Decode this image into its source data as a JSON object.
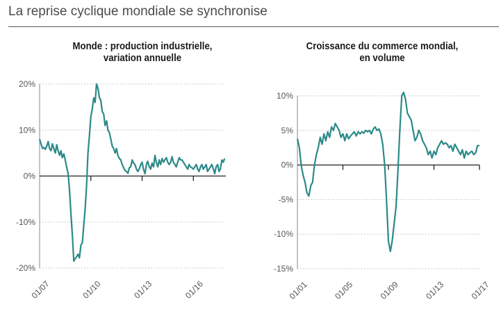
{
  "title": "La reprise cyclique mondiale se synchronise",
  "colors": {
    "line": "#2a8a88",
    "axis": "#222222",
    "grid": "#bbbbbb",
    "text": "#555555"
  },
  "chart_data": [
    {
      "type": "line",
      "title_lines": [
        "Monde : production industrielle,",
        "variation annuelle"
      ],
      "x_tick_labels": [
        "01/07",
        "01/10",
        "01/13",
        "01/16"
      ],
      "x_ticks": [
        2007.0,
        2010.0,
        2013.0,
        2016.0
      ],
      "xlim": [
        2007.0,
        2017.9
      ],
      "y_tick_labels": [
        "20%",
        "10%",
        "0%",
        "-10%",
        "-20%"
      ],
      "y_ticks": [
        20,
        10,
        0,
        -10,
        -20
      ],
      "ylim": [
        -20,
        20
      ],
      "grid": "horizontal dotted",
      "series": [
        {
          "x": [
            2007.0,
            2007.08,
            2007.17,
            2007.25,
            2007.33,
            2007.42,
            2007.5,
            2007.58,
            2007.67,
            2007.75,
            2007.83,
            2007.92,
            2008.0,
            2008.08,
            2008.17,
            2008.25,
            2008.33,
            2008.42,
            2008.5,
            2008.58,
            2008.67,
            2008.75,
            2008.83,
            2008.92,
            2009.0,
            2009.08,
            2009.17,
            2009.25,
            2009.33,
            2009.42,
            2009.5,
            2009.58,
            2009.67,
            2009.75,
            2009.83,
            2009.92,
            2010.0,
            2010.08,
            2010.17,
            2010.25,
            2010.33,
            2010.42,
            2010.5,
            2010.58,
            2010.67,
            2010.75,
            2010.83,
            2010.92,
            2011.0,
            2011.08,
            2011.17,
            2011.25,
            2011.33,
            2011.42,
            2011.5,
            2011.58,
            2011.67,
            2011.75,
            2011.83,
            2011.92,
            2012.0,
            2012.08,
            2012.17,
            2012.25,
            2012.33,
            2012.42,
            2012.5,
            2012.58,
            2012.67,
            2012.75,
            2012.83,
            2012.92,
            2013.0,
            2013.08,
            2013.17,
            2013.25,
            2013.33,
            2013.42,
            2013.5,
            2013.58,
            2013.67,
            2013.75,
            2013.83,
            2013.92,
            2014.0,
            2014.08,
            2014.17,
            2014.25,
            2014.33,
            2014.42,
            2014.5,
            2014.58,
            2014.67,
            2014.75,
            2014.83,
            2014.92,
            2015.0,
            2015.08,
            2015.17,
            2015.25,
            2015.33,
            2015.42,
            2015.5,
            2015.58,
            2015.67,
            2015.75,
            2015.83,
            2015.92,
            2016.0,
            2016.08,
            2016.17,
            2016.25,
            2016.33,
            2016.42,
            2016.5,
            2016.58,
            2016.67,
            2016.75,
            2016.83,
            2016.92,
            2017.0,
            2017.08,
            2017.17,
            2017.25,
            2017.33,
            2017.42,
            2017.5,
            2017.58,
            2017.67,
            2017.75,
            2017.83
          ],
          "values": [
            8.0,
            7.0,
            6.0,
            6.2,
            5.8,
            6.5,
            7.5,
            6.0,
            5.5,
            7.0,
            6.0,
            5.0,
            6.8,
            5.5,
            4.5,
            5.5,
            4.0,
            4.8,
            3.5,
            2.0,
            0.5,
            -3.0,
            -8.0,
            -13.0,
            -18.5,
            -18.0,
            -17.5,
            -17.0,
            -17.8,
            -15.0,
            -14.5,
            -11.0,
            -7.0,
            -2.0,
            5.0,
            9.0,
            13.0,
            14.5,
            17.0,
            16.0,
            20.0,
            19.0,
            17.0,
            16.5,
            14.0,
            13.5,
            11.0,
            12.0,
            10.0,
            9.5,
            8.0,
            6.5,
            6.0,
            5.0,
            6.0,
            4.5,
            3.8,
            3.5,
            2.5,
            1.8,
            1.2,
            1.0,
            0.6,
            1.8,
            2.0,
            3.5,
            2.8,
            2.5,
            1.5,
            1.0,
            1.5,
            2.5,
            3.0,
            1.5,
            0.5,
            2.5,
            3.2,
            2.0,
            1.5,
            2.8,
            2.0,
            4.5,
            3.0,
            2.0,
            3.5,
            2.5,
            3.8,
            3.0,
            3.5,
            4.0,
            3.0,
            2.5,
            3.0,
            4.2,
            3.0,
            2.5,
            2.0,
            3.0,
            4.0,
            3.5,
            3.5,
            3.0,
            2.5,
            2.0,
            1.5,
            2.5,
            2.0,
            1.8,
            1.5,
            2.0,
            2.5,
            1.5,
            1.0,
            2.0,
            2.5,
            1.5,
            2.0,
            2.5,
            1.0,
            1.5,
            2.0,
            2.5,
            1.5,
            0.5,
            2.0,
            2.5,
            1.0,
            1.5,
            3.5,
            3.0,
            3.8
          ]
        }
      ]
    },
    {
      "type": "line",
      "title_lines": [
        "Croissance du commerce mondial,",
        "en volume"
      ],
      "x_tick_labels": [
        "01/01",
        "01/05",
        "01/09",
        "01/13",
        "01/17"
      ],
      "x_ticks": [
        2001.0,
        2005.0,
        2009.0,
        2013.0,
        2017.0
      ],
      "xlim": [
        2001.0,
        2017.0
      ],
      "y_tick_labels": [
        "10%",
        "5%",
        "0%",
        "-5%",
        "-10%",
        "-15%"
      ],
      "y_ticks": [
        10,
        5,
        0,
        -5,
        -10,
        -15
      ],
      "ylim": [
        -15,
        10
      ],
      "grid": "horizontal dotted",
      "series": [
        {
          "x": [
            2001.0,
            2001.17,
            2001.33,
            2001.5,
            2001.67,
            2001.83,
            2002.0,
            2002.17,
            2002.33,
            2002.5,
            2002.67,
            2002.83,
            2003.0,
            2003.17,
            2003.33,
            2003.5,
            2003.67,
            2003.83,
            2004.0,
            2004.17,
            2004.33,
            2004.5,
            2004.67,
            2004.83,
            2005.0,
            2005.17,
            2005.33,
            2005.5,
            2005.67,
            2005.83,
            2006.0,
            2006.17,
            2006.33,
            2006.5,
            2006.67,
            2006.83,
            2007.0,
            2007.17,
            2007.33,
            2007.5,
            2007.67,
            2007.83,
            2008.0,
            2008.17,
            2008.33,
            2008.5,
            2008.67,
            2008.83,
            2009.0,
            2009.17,
            2009.33,
            2009.5,
            2009.67,
            2009.83,
            2010.0,
            2010.17,
            2010.33,
            2010.5,
            2010.67,
            2010.83,
            2011.0,
            2011.17,
            2011.33,
            2011.5,
            2011.67,
            2011.83,
            2012.0,
            2012.17,
            2012.33,
            2012.5,
            2012.67,
            2012.83,
            2013.0,
            2013.17,
            2013.33,
            2013.5,
            2013.67,
            2013.83,
            2014.0,
            2014.17,
            2014.33,
            2014.5,
            2014.67,
            2014.83,
            2015.0,
            2015.17,
            2015.33,
            2015.5,
            2015.67,
            2015.83,
            2016.0,
            2016.17,
            2016.33,
            2016.5,
            2016.67,
            2016.83,
            2017.0
          ],
          "values": [
            3.8,
            2.5,
            0.0,
            -1.5,
            -2.5,
            -4.0,
            -4.5,
            -3.0,
            -2.5,
            0.0,
            1.5,
            2.5,
            4.0,
            3.0,
            4.5,
            3.5,
            4.8,
            4.0,
            5.5,
            5.0,
            6.0,
            5.5,
            5.0,
            4.0,
            4.5,
            3.5,
            4.5,
            3.8,
            4.2,
            4.5,
            4.8,
            4.2,
            4.8,
            4.5,
            4.8,
            4.6,
            5.0,
            4.8,
            5.0,
            4.5,
            5.2,
            5.5,
            5.0,
            5.2,
            4.5,
            3.0,
            0.0,
            -5.0,
            -11.0,
            -12.5,
            -11.0,
            -8.5,
            -6.0,
            -1.0,
            5.0,
            10.0,
            10.5,
            9.5,
            7.5,
            7.0,
            6.5,
            5.0,
            3.5,
            4.0,
            5.0,
            4.5,
            3.5,
            3.0,
            2.5,
            1.5,
            2.0,
            1.0,
            2.0,
            1.5,
            2.5,
            3.0,
            3.5,
            3.0,
            3.2,
            3.0,
            2.5,
            2.8,
            2.0,
            3.0,
            2.5,
            2.0,
            1.5,
            2.2,
            1.0,
            2.0,
            1.5,
            1.8,
            2.0,
            1.5,
            1.8,
            2.8,
            2.8
          ]
        }
      ]
    }
  ]
}
